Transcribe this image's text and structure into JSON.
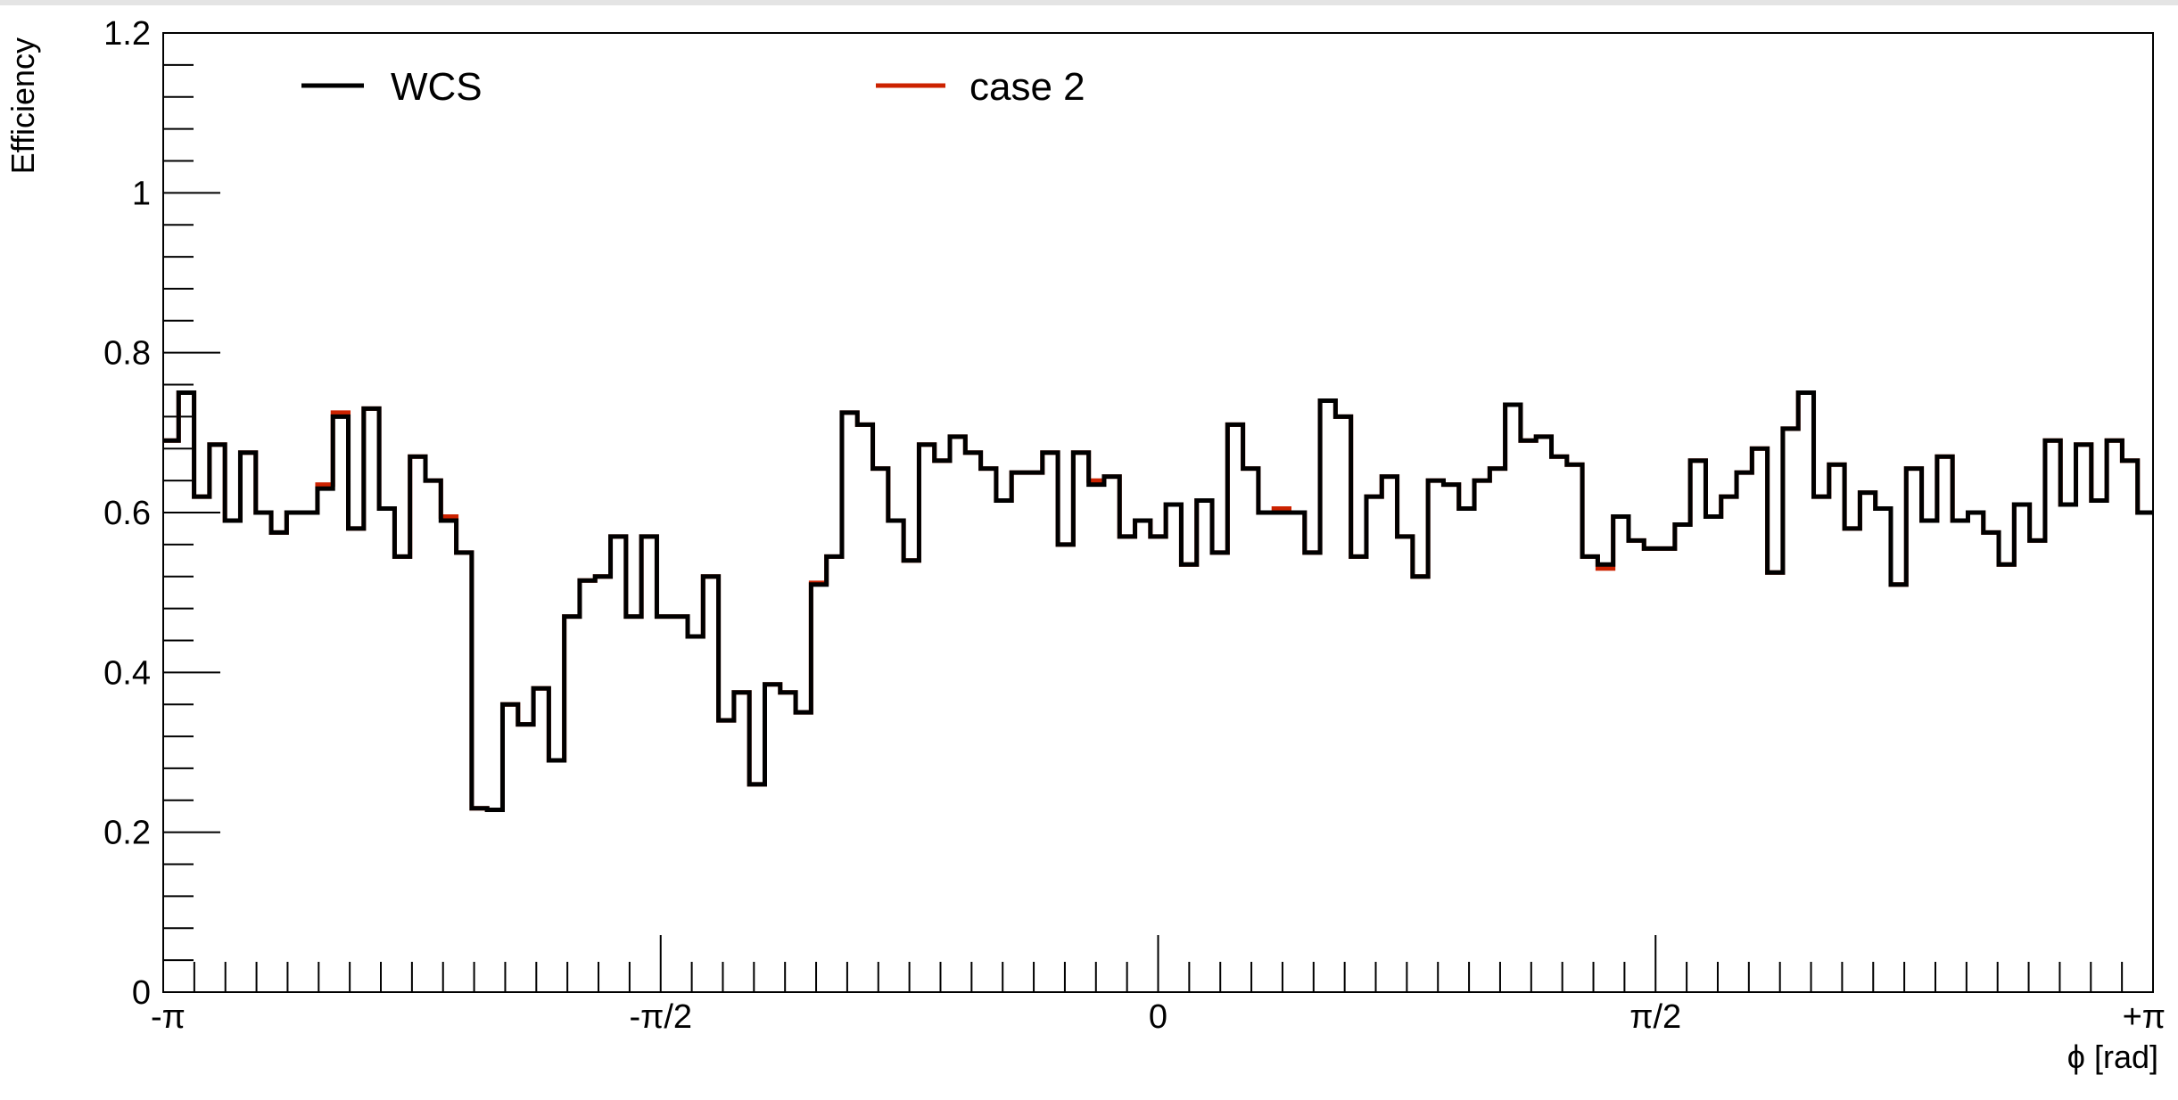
{
  "chart_data": {
    "type": "line",
    "title": "",
    "xlabel": "ϕ [rad]",
    "ylabel": "Efficiency",
    "xlim": [
      -3.14159,
      3.14159
    ],
    "ylim": [
      0,
      1.2
    ],
    "grid": false,
    "legend_position": "top-left",
    "x_tick_labels": [
      {
        "value": -3.14159,
        "label": "-π"
      },
      {
        "value": -1.5708,
        "label": "-π/2"
      },
      {
        "value": 0,
        "label": "0"
      },
      {
        "value": 1.5708,
        "label": "π/2"
      },
      {
        "value": 3.14159,
        "label": "+π"
      }
    ],
    "y_tick_labels": [
      {
        "value": 0,
        "label": "0"
      },
      {
        "value": 0.2,
        "label": "0.2"
      },
      {
        "value": 0.4,
        "label": "0.4"
      },
      {
        "value": 0.6,
        "label": "0.6"
      },
      {
        "value": 0.8,
        "label": "0.8"
      },
      {
        "value": 1.0,
        "label": "1"
      },
      {
        "value": 1.2,
        "label": "1.2"
      }
    ],
    "series": [
      {
        "name": "WCS",
        "color": "#000000",
        "values": [
          0.69,
          0.75,
          0.62,
          0.685,
          0.59,
          0.675,
          0.6,
          0.575,
          0.6,
          0.6,
          0.63,
          0.72,
          0.58,
          0.73,
          0.605,
          0.545,
          0.67,
          0.64,
          0.59,
          0.55,
          0.23,
          0.228,
          0.36,
          0.335,
          0.38,
          0.29,
          0.47,
          0.515,
          0.52,
          0.57,
          0.47,
          0.57,
          0.47,
          0.47,
          0.445,
          0.52,
          0.34,
          0.375,
          0.26,
          0.385,
          0.375,
          0.35,
          0.51,
          0.545,
          0.725,
          0.71,
          0.655,
          0.59,
          0.54,
          0.685,
          0.665,
          0.695,
          0.675,
          0.655,
          0.615,
          0.65,
          0.65,
          0.675,
          0.56,
          0.675,
          0.635,
          0.645,
          0.57,
          0.59,
          0.57,
          0.61,
          0.535,
          0.615,
          0.55,
          0.71,
          0.655,
          0.6,
          0.6,
          0.6,
          0.55,
          0.74,
          0.72,
          0.545,
          0.62,
          0.645,
          0.57,
          0.52,
          0.64,
          0.635,
          0.605,
          0.64,
          0.655,
          0.735,
          0.69,
          0.695,
          0.67,
          0.66,
          0.545,
          0.535,
          0.595,
          0.565,
          0.555,
          0.555,
          0.585,
          0.665,
          0.595,
          0.62,
          0.65,
          0.68,
          0.525,
          0.705,
          0.75,
          0.62,
          0.66,
          0.58,
          0.625,
          0.605,
          0.51,
          0.655,
          0.59,
          0.67,
          0.59,
          0.6,
          0.575,
          0.535,
          0.61,
          0.565,
          0.69,
          0.61,
          0.685,
          0.615,
          0.69,
          0.665,
          0.6
        ]
      },
      {
        "name": "case 2",
        "color": "#cc2200",
        "values": [
          0.69,
          0.75,
          0.62,
          0.685,
          0.59,
          0.675,
          0.6,
          0.575,
          0.6,
          0.6,
          0.635,
          0.725,
          0.58,
          0.73,
          0.605,
          0.545,
          0.67,
          0.64,
          0.595,
          0.55,
          0.23,
          0.228,
          0.36,
          0.335,
          0.38,
          0.29,
          0.47,
          0.515,
          0.52,
          0.57,
          0.47,
          0.57,
          0.47,
          0.47,
          0.445,
          0.52,
          0.34,
          0.375,
          0.26,
          0.385,
          0.375,
          0.35,
          0.512,
          0.545,
          0.725,
          0.71,
          0.655,
          0.59,
          0.54,
          0.685,
          0.665,
          0.695,
          0.675,
          0.655,
          0.615,
          0.65,
          0.65,
          0.675,
          0.56,
          0.675,
          0.64,
          0.645,
          0.57,
          0.59,
          0.57,
          0.61,
          0.535,
          0.615,
          0.55,
          0.71,
          0.655,
          0.6,
          0.605,
          0.6,
          0.55,
          0.74,
          0.72,
          0.545,
          0.62,
          0.645,
          0.57,
          0.52,
          0.64,
          0.635,
          0.605,
          0.64,
          0.655,
          0.735,
          0.69,
          0.695,
          0.67,
          0.66,
          0.545,
          0.53,
          0.595,
          0.565,
          0.555,
          0.555,
          0.585,
          0.665,
          0.595,
          0.62,
          0.65,
          0.68,
          0.525,
          0.705,
          0.75,
          0.62,
          0.66,
          0.58,
          0.625,
          0.605,
          0.51,
          0.655,
          0.59,
          0.67,
          0.59,
          0.6,
          0.575,
          0.535,
          0.61,
          0.565,
          0.69,
          0.61,
          0.685,
          0.615,
          0.69,
          0.665,
          0.6
        ]
      }
    ]
  }
}
